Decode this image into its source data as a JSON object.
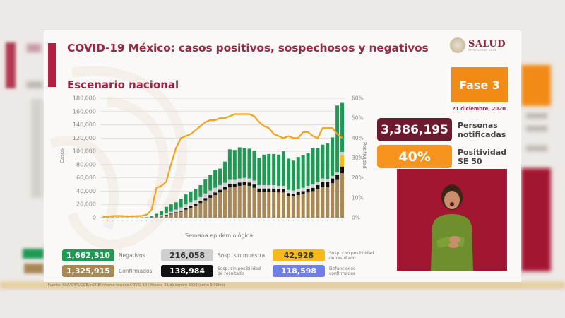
{
  "slide": {
    "title": "COVID-19 México: casos positivos, sospechosos y negativos",
    "subtitle": "Escenario nacional",
    "logo": {
      "name": "SALUD",
      "tagline": "SECRETARÍA DE SALUD"
    },
    "phase": "Fase 3",
    "date": "21 diciembre, 2020",
    "stats": [
      {
        "value": "3,386,195",
        "label_line1": "Personas",
        "label_line2": "notificadas",
        "color": "#6e1a2e"
      },
      {
        "value": "40%",
        "label_line1": "Positividad",
        "label_line2": "SE 50",
        "color": "#f7941d"
      }
    ],
    "legend": [
      {
        "value": "1,662,310",
        "label": "Negativos",
        "color": "#1f9a55",
        "text_color": "#ffffff"
      },
      {
        "value": "216,058",
        "label": "Sosp. sin muestra",
        "color": "#cfcfcf",
        "text_color": "#333333"
      },
      {
        "value": "42,928",
        "label": "Sosp. con posibilidad de resultado",
        "color": "#f6b91a",
        "text_color": "#333333"
      },
      {
        "value": "1,325,915",
        "label": "Confirmados",
        "color": "#a88855",
        "text_color": "#ffffff"
      },
      {
        "value": "138,984",
        "label": "Sosp. sin posibilidad de resultado",
        "color": "#111111",
        "text_color": "#ffffff"
      },
      {
        "value": "118,598",
        "label": "Defunciones confirmadas",
        "color": "#6f7fe6",
        "text_color": "#ffffff"
      }
    ],
    "footer": "Fuente: SSA/SPPS/DGE/InDRE/Informe técnico.COVID-19 /México- 21 diciembre 2020 (corte 9:00hrs)"
  },
  "chart_data": {
    "type": "bar",
    "title": "Escenario nacional",
    "xlabel": "Semana epidemiológica",
    "ylabel": "Casos",
    "y2label": "Positividad",
    "ylim": [
      0,
      180000
    ],
    "y2lim": [
      0,
      60
    ],
    "yticks": [
      "0",
      "20,000",
      "40,000",
      "60,000",
      "80,000",
      "100,000",
      "120,000",
      "140,000",
      "160,000",
      "180,000"
    ],
    "y2ticks": [
      "0%",
      "10%",
      "20%",
      "30%",
      "40%",
      "50%",
      "60%"
    ],
    "grid": true,
    "stacked": true,
    "categories": [
      "1",
      "2",
      "3",
      "4",
      "5",
      "6",
      "7",
      "8",
      "9",
      "10",
      "11",
      "12",
      "13",
      "14",
      "15",
      "16",
      "17",
      "18",
      "19",
      "20",
      "21",
      "22",
      "23",
      "24",
      "25",
      "26",
      "27",
      "28",
      "29",
      "30",
      "31",
      "32",
      "33",
      "34",
      "35",
      "36",
      "37",
      "38",
      "39",
      "40",
      "41",
      "42",
      "43",
      "44",
      "45",
      "46",
      "47",
      "48",
      "49",
      "50"
    ],
    "series": [
      {
        "name": "Confirmados",
        "color": "#a88855",
        "values": [
          100,
          100,
          200,
          200,
          150,
          100,
          100,
          100,
          200,
          300,
          600,
          1500,
          2500,
          3500,
          5000,
          7000,
          9000,
          12000,
          15000,
          18000,
          22000,
          26000,
          30000,
          34000,
          38000,
          42000,
          46000,
          46000,
          48000,
          49000,
          48000,
          45000,
          39000,
          39000,
          39000,
          39000,
          38000,
          38000,
          33000,
          32000,
          34000,
          35000,
          38000,
          40000,
          43000,
          46000,
          46000,
          52000,
          57000,
          67000
        ]
      },
      {
        "name": "Sosp. sin posibilidad de resultado",
        "color": "#111111",
        "values": [
          0,
          0,
          0,
          0,
          0,
          0,
          0,
          0,
          0,
          0,
          100,
          300,
          500,
          800,
          1000,
          1200,
          1500,
          2000,
          2200,
          2500,
          3000,
          3500,
          4000,
          4000,
          4000,
          4500,
          5000,
          5000,
          5000,
          5000,
          5000,
          5000,
          5000,
          5000,
          5000,
          5000,
          5000,
          5000,
          4000,
          4000,
          4500,
          5000,
          5000,
          5000,
          6000,
          8000,
          8000,
          7000,
          7000,
          10000
        ]
      },
      {
        "name": "Sosp. con posibilidad de resultado",
        "color": "#f6b91a",
        "values": [
          0,
          0,
          0,
          0,
          0,
          0,
          0,
          0,
          0,
          0,
          0,
          0,
          0,
          0,
          0,
          0,
          0,
          0,
          0,
          0,
          0,
          0,
          0,
          0,
          0,
          0,
          0,
          0,
          0,
          0,
          0,
          0,
          0,
          0,
          0,
          0,
          0,
          0,
          0,
          0,
          0,
          0,
          0,
          0,
          0,
          0,
          0,
          0,
          0,
          17000
        ]
      },
      {
        "name": "Sosp. sin muestra",
        "color": "#cfcfcf",
        "values": [
          0,
          0,
          0,
          0,
          0,
          0,
          0,
          0,
          0,
          0,
          200,
          500,
          1000,
          2000,
          3000,
          4000,
          5000,
          6000,
          6000,
          6000,
          6000,
          7000,
          7000,
          7000,
          7000,
          6000,
          6000,
          6000,
          6000,
          6000,
          6000,
          6000,
          5000,
          5000,
          5000,
          5000,
          5000,
          5000,
          5000,
          5000,
          5000,
          5000,
          5000,
          5000,
          5000,
          5000,
          4000,
          4000,
          4000,
          5000
        ]
      },
      {
        "name": "Negativos",
        "color": "#1f9a55",
        "values": [
          100,
          100,
          200,
          200,
          150,
          100,
          100,
          100,
          200,
          400,
          1500,
          3500,
          6000,
          10000,
          11000,
          11000,
          13000,
          15000,
          16000,
          17000,
          18000,
          21000,
          23000,
          27000,
          25000,
          32000,
          46000,
          45000,
          47000,
          45000,
          45000,
          45000,
          41000,
          46000,
          47000,
          47000,
          47000,
          52000,
          47000,
          45000,
          48000,
          49000,
          49000,
          55000,
          51000,
          51000,
          54000,
          58000,
          101000,
          74000
        ]
      },
      {
        "name": "Positividad (%)",
        "type": "line",
        "axis": "y2",
        "color": "#f2a31b",
        "values": [
          0.5,
          0.6,
          0.8,
          0.9,
          0.8,
          0.7,
          0.7,
          0.8,
          0.9,
          1.5,
          4,
          15,
          16,
          18,
          27,
          35,
          40,
          41,
          42,
          44,
          46,
          48,
          49,
          49,
          50,
          50,
          51,
          52,
          52,
          52,
          52,
          51,
          48,
          46,
          45,
          42,
          41,
          40,
          41,
          40,
          40,
          43,
          43,
          41,
          40,
          45,
          45,
          45,
          42,
          40
        ]
      }
    ]
  }
}
